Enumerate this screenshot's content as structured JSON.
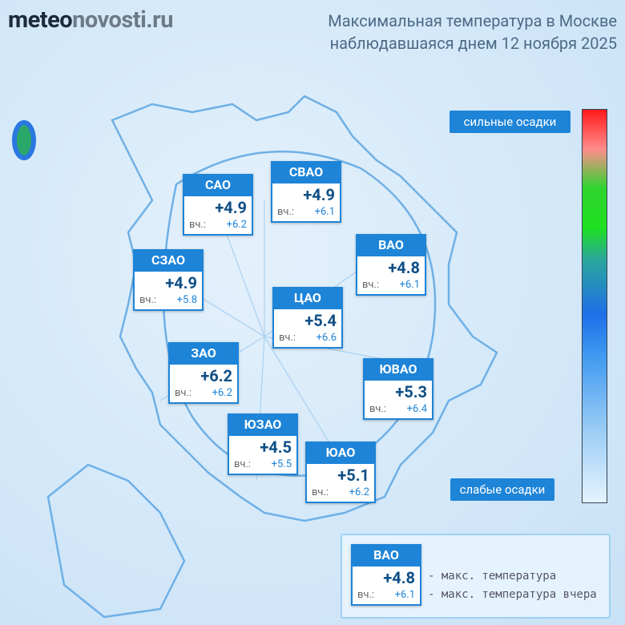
{
  "header": {
    "logo": {
      "prefix": "meteo",
      "suffix": "novosti.ru"
    },
    "title": [
      "Максимальная температура в Москве",
      "наблюдавшаяся днем 12 ноября 2025"
    ]
  },
  "districts": [
    {
      "name": "САО",
      "temp": "+4.9",
      "prev_label": "вч.:",
      "prev": "+6.2"
    },
    {
      "name": "СВАО",
      "temp": "+4.9",
      "prev_label": "вч.:",
      "prev": "+6.1"
    },
    {
      "name": "ВАО",
      "temp": "+4.8",
      "prev_label": "вч.:",
      "prev": "+6.1"
    },
    {
      "name": "СЗАО",
      "temp": "+4.9",
      "prev_label": "вч.:",
      "prev": "+5.8"
    },
    {
      "name": "ЦАО",
      "temp": "+5.4",
      "prev_label": "вч.:",
      "prev": "+6.6"
    },
    {
      "name": "ЗАО",
      "temp": "+6.2",
      "prev_label": "вч.:",
      "prev": "+6.2"
    },
    {
      "name": "ЮВАО",
      "temp": "+5.3",
      "prev_label": "вч.:",
      "prev": "+6.4"
    },
    {
      "name": "ЮЗАО",
      "temp": "+4.5",
      "prev_label": "вч.:",
      "prev": "+5.5"
    },
    {
      "name": "ЮАО",
      "temp": "+5.1",
      "prev_label": "вч.:",
      "prev": "+6.2"
    }
  ],
  "scale": {
    "top": "сильные осадки",
    "bottom": "слабые осадки"
  },
  "legend": {
    "sample": {
      "name": "ВАО",
      "temp": "+4.8",
      "prev_label": "вч.:",
      "prev": "+6.1"
    },
    "notes": [
      "- макс. температура",
      "- макс. температура вчера"
    ]
  }
}
